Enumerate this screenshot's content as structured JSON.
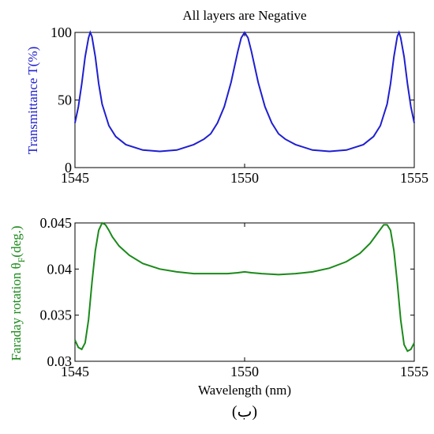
{
  "chart_data": [
    {
      "type": "line",
      "title": "All layers are Negative",
      "xlabel": "",
      "ylabel": "Transmittance T(%)",
      "ylabel_color": "#1f1fd0",
      "xlim": [
        1545,
        1555
      ],
      "ylim": [
        0,
        100
      ],
      "xticks": [
        1545,
        1550,
        1555
      ],
      "yticks": [
        0,
        50,
        100
      ],
      "grid": false,
      "series": [
        {
          "color": "#1f1fd0",
          "peaks": [
            1545.45,
            1550.0,
            1554.55
          ],
          "x": [
            1545.0,
            1545.1,
            1545.2,
            1545.3,
            1545.4,
            1545.45,
            1545.5,
            1545.6,
            1545.7,
            1545.8,
            1546.0,
            1546.2,
            1546.5,
            1547.0,
            1547.5,
            1548.0,
            1548.5,
            1548.8,
            1549.0,
            1549.2,
            1549.4,
            1549.6,
            1549.8,
            1549.9,
            1550.0,
            1550.1,
            1550.2,
            1550.4,
            1550.6,
            1550.8,
            1551.0,
            1551.2,
            1551.5,
            1552.0,
            1552.5,
            1553.0,
            1553.5,
            1553.8,
            1554.0,
            1554.2,
            1554.3,
            1554.4,
            1554.5,
            1554.55,
            1554.6,
            1554.7,
            1554.8,
            1554.9,
            1555.0
          ],
          "y": [
            33,
            45,
            62,
            82,
            96,
            100,
            97,
            82,
            62,
            47,
            31,
            23,
            17,
            13,
            12,
            13,
            17,
            21,
            25,
            33,
            45,
            63,
            86,
            96,
            100,
            96,
            86,
            63,
            45,
            33,
            25,
            21,
            17,
            13,
            12,
            13,
            17,
            23,
            31,
            47,
            62,
            82,
            97,
            100,
            96,
            82,
            62,
            45,
            33
          ]
        }
      ]
    },
    {
      "type": "line",
      "title": "",
      "xlabel": "Wavelength (nm)",
      "ylabel_main": "Faraday rotation θ",
      "ylabel_sub": "F",
      "ylabel_unit": "(deg.)",
      "ylabel_color": "#1a8a1a",
      "xlim": [
        1545,
        1555
      ],
      "ylim": [
        0.03,
        0.045
      ],
      "xticks": [
        1545,
        1550,
        1555
      ],
      "yticks": [
        0.03,
        0.035,
        0.04,
        0.045
      ],
      "ytick_labels": [
        "0.03",
        "0.035",
        "0.04",
        "0.045"
      ],
      "grid": false,
      "series": [
        {
          "color": "#1a8a1a",
          "x": [
            1545.0,
            1545.1,
            1545.2,
            1545.3,
            1545.4,
            1545.5,
            1545.6,
            1545.7,
            1545.8,
            1545.9,
            1546.0,
            1546.1,
            1546.3,
            1546.6,
            1547.0,
            1547.5,
            1548.0,
            1548.5,
            1549.0,
            1549.5,
            1549.8,
            1550.0,
            1550.2,
            1550.5,
            1551.0,
            1551.5,
            1552.0,
            1552.5,
            1553.0,
            1553.4,
            1553.7,
            1553.9,
            1554.0,
            1554.1,
            1554.2,
            1554.3,
            1554.4,
            1554.5,
            1554.6,
            1554.7,
            1554.8,
            1554.9,
            1555.0
          ],
          "y": [
            0.0323,
            0.0315,
            0.0313,
            0.032,
            0.0345,
            0.0385,
            0.042,
            0.0442,
            0.045,
            0.0448,
            0.0442,
            0.0435,
            0.0425,
            0.0415,
            0.0406,
            0.04,
            0.0397,
            0.0395,
            0.0395,
            0.0395,
            0.0396,
            0.0397,
            0.0396,
            0.0395,
            0.0394,
            0.0395,
            0.0397,
            0.0401,
            0.0408,
            0.0417,
            0.0428,
            0.0438,
            0.0443,
            0.0448,
            0.0448,
            0.0442,
            0.042,
            0.0385,
            0.0345,
            0.0318,
            0.0311,
            0.0313,
            0.032
          ]
        }
      ]
    }
  ],
  "caption": "(ب)"
}
